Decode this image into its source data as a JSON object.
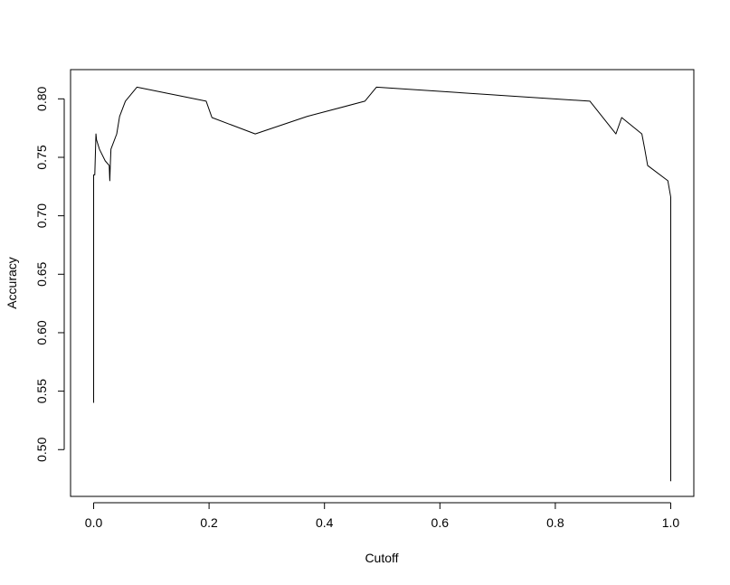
{
  "chart_data": {
    "type": "line",
    "title": "",
    "xlabel": "Cutoff",
    "ylabel": "Accuracy",
    "xlim": [
      -0.04,
      1.04
    ],
    "ylim": [
      0.46,
      0.825
    ],
    "x_ticks": [
      0.0,
      0.2,
      0.4,
      0.6,
      0.8,
      1.0
    ],
    "x_tick_labels": [
      "0.0",
      "0.2",
      "0.4",
      "0.6",
      "0.8",
      "1.0"
    ],
    "y_ticks": [
      0.5,
      0.55,
      0.6,
      0.65,
      0.7,
      0.75,
      0.8
    ],
    "y_tick_labels": [
      "0.50",
      "0.55",
      "0.60",
      "0.65",
      "0.70",
      "0.75",
      "0.80"
    ],
    "grid": false,
    "series": [
      {
        "x": [
          0.0,
          0.0,
          0.002,
          0.004,
          0.005,
          0.01,
          0.02,
          0.027,
          0.028,
          0.029,
          0.03,
          0.04,
          0.045,
          0.055,
          0.075,
          0.195,
          0.205,
          0.28,
          0.37,
          0.47,
          0.49,
          0.86,
          0.905,
          0.915,
          0.95,
          0.955,
          0.96,
          0.995,
          1.0,
          1.0,
          1.0,
          1.0,
          1.0
        ],
        "y": [
          0.54,
          0.735,
          0.735,
          0.77,
          0.765,
          0.757,
          0.747,
          0.743,
          0.73,
          0.745,
          0.757,
          0.77,
          0.785,
          0.798,
          0.81,
          0.798,
          0.784,
          0.77,
          0.785,
          0.798,
          0.81,
          0.798,
          0.77,
          0.784,
          0.77,
          0.757,
          0.743,
          0.73,
          0.716,
          0.696,
          0.716,
          0.5,
          0.473
        ]
      }
    ]
  }
}
